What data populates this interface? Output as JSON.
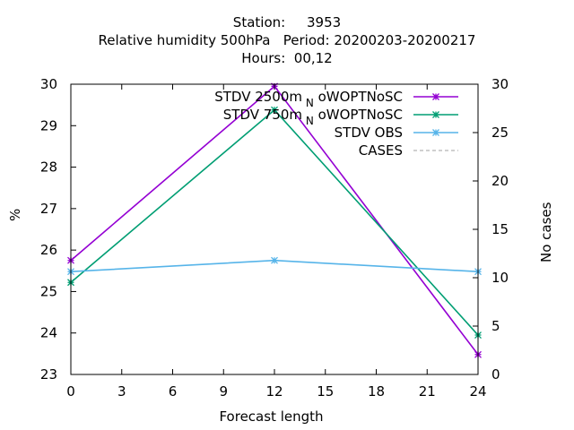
{
  "header": {
    "line1": "Station:     3953",
    "line2": "Relative humidity 500hPa   Period: 20200203-20200217",
    "line3": "Hours:  00,12"
  },
  "chart_data": {
    "type": "line",
    "xlabel": "Forecast length",
    "ylabel": "%",
    "y2label": "No cases",
    "xlim": [
      0,
      24
    ],
    "ylim": [
      23,
      30
    ],
    "y2lim": [
      0,
      30
    ],
    "xticks": [
      0,
      3,
      6,
      9,
      12,
      15,
      18,
      21,
      24
    ],
    "yticks": [
      23,
      24,
      25,
      26,
      27,
      28,
      29,
      30
    ],
    "y2ticks": [
      0,
      5,
      10,
      15,
      20,
      25,
      30
    ],
    "grid": false,
    "legend_position": "top-right",
    "x": [
      0,
      12,
      24
    ],
    "series": [
      {
        "name": "STDV 2500m_N oWOPTNoSC",
        "legend_main": "STDV 2500m",
        "legend_sub": "N",
        "legend_tail": " oWOPTNoSC",
        "color": "#9400d3",
        "marker": "x",
        "values": [
          25.75,
          29.95,
          23.48
        ]
      },
      {
        "name": "STDV 750m_N oWOPTNoSC",
        "legend_main": "STDV 750m",
        "legend_sub": "N",
        "legend_tail": " oWOPTNoSC",
        "color": "#009e73",
        "marker": "x",
        "values": [
          25.22,
          29.38,
          23.95
        ]
      },
      {
        "name": "STDV OBS",
        "legend_main": "STDV OBS",
        "legend_sub": "",
        "legend_tail": "",
        "color": "#56b4e9",
        "marker": "x",
        "values": [
          25.48,
          25.75,
          25.48
        ]
      },
      {
        "name": "CASES",
        "legend_main": "CASES",
        "legend_sub": "",
        "legend_tail": "",
        "color": "#a0a0a0",
        "marker": "none",
        "dashed": true,
        "axis": "y2",
        "values": [
          30,
          30,
          30
        ]
      }
    ]
  }
}
